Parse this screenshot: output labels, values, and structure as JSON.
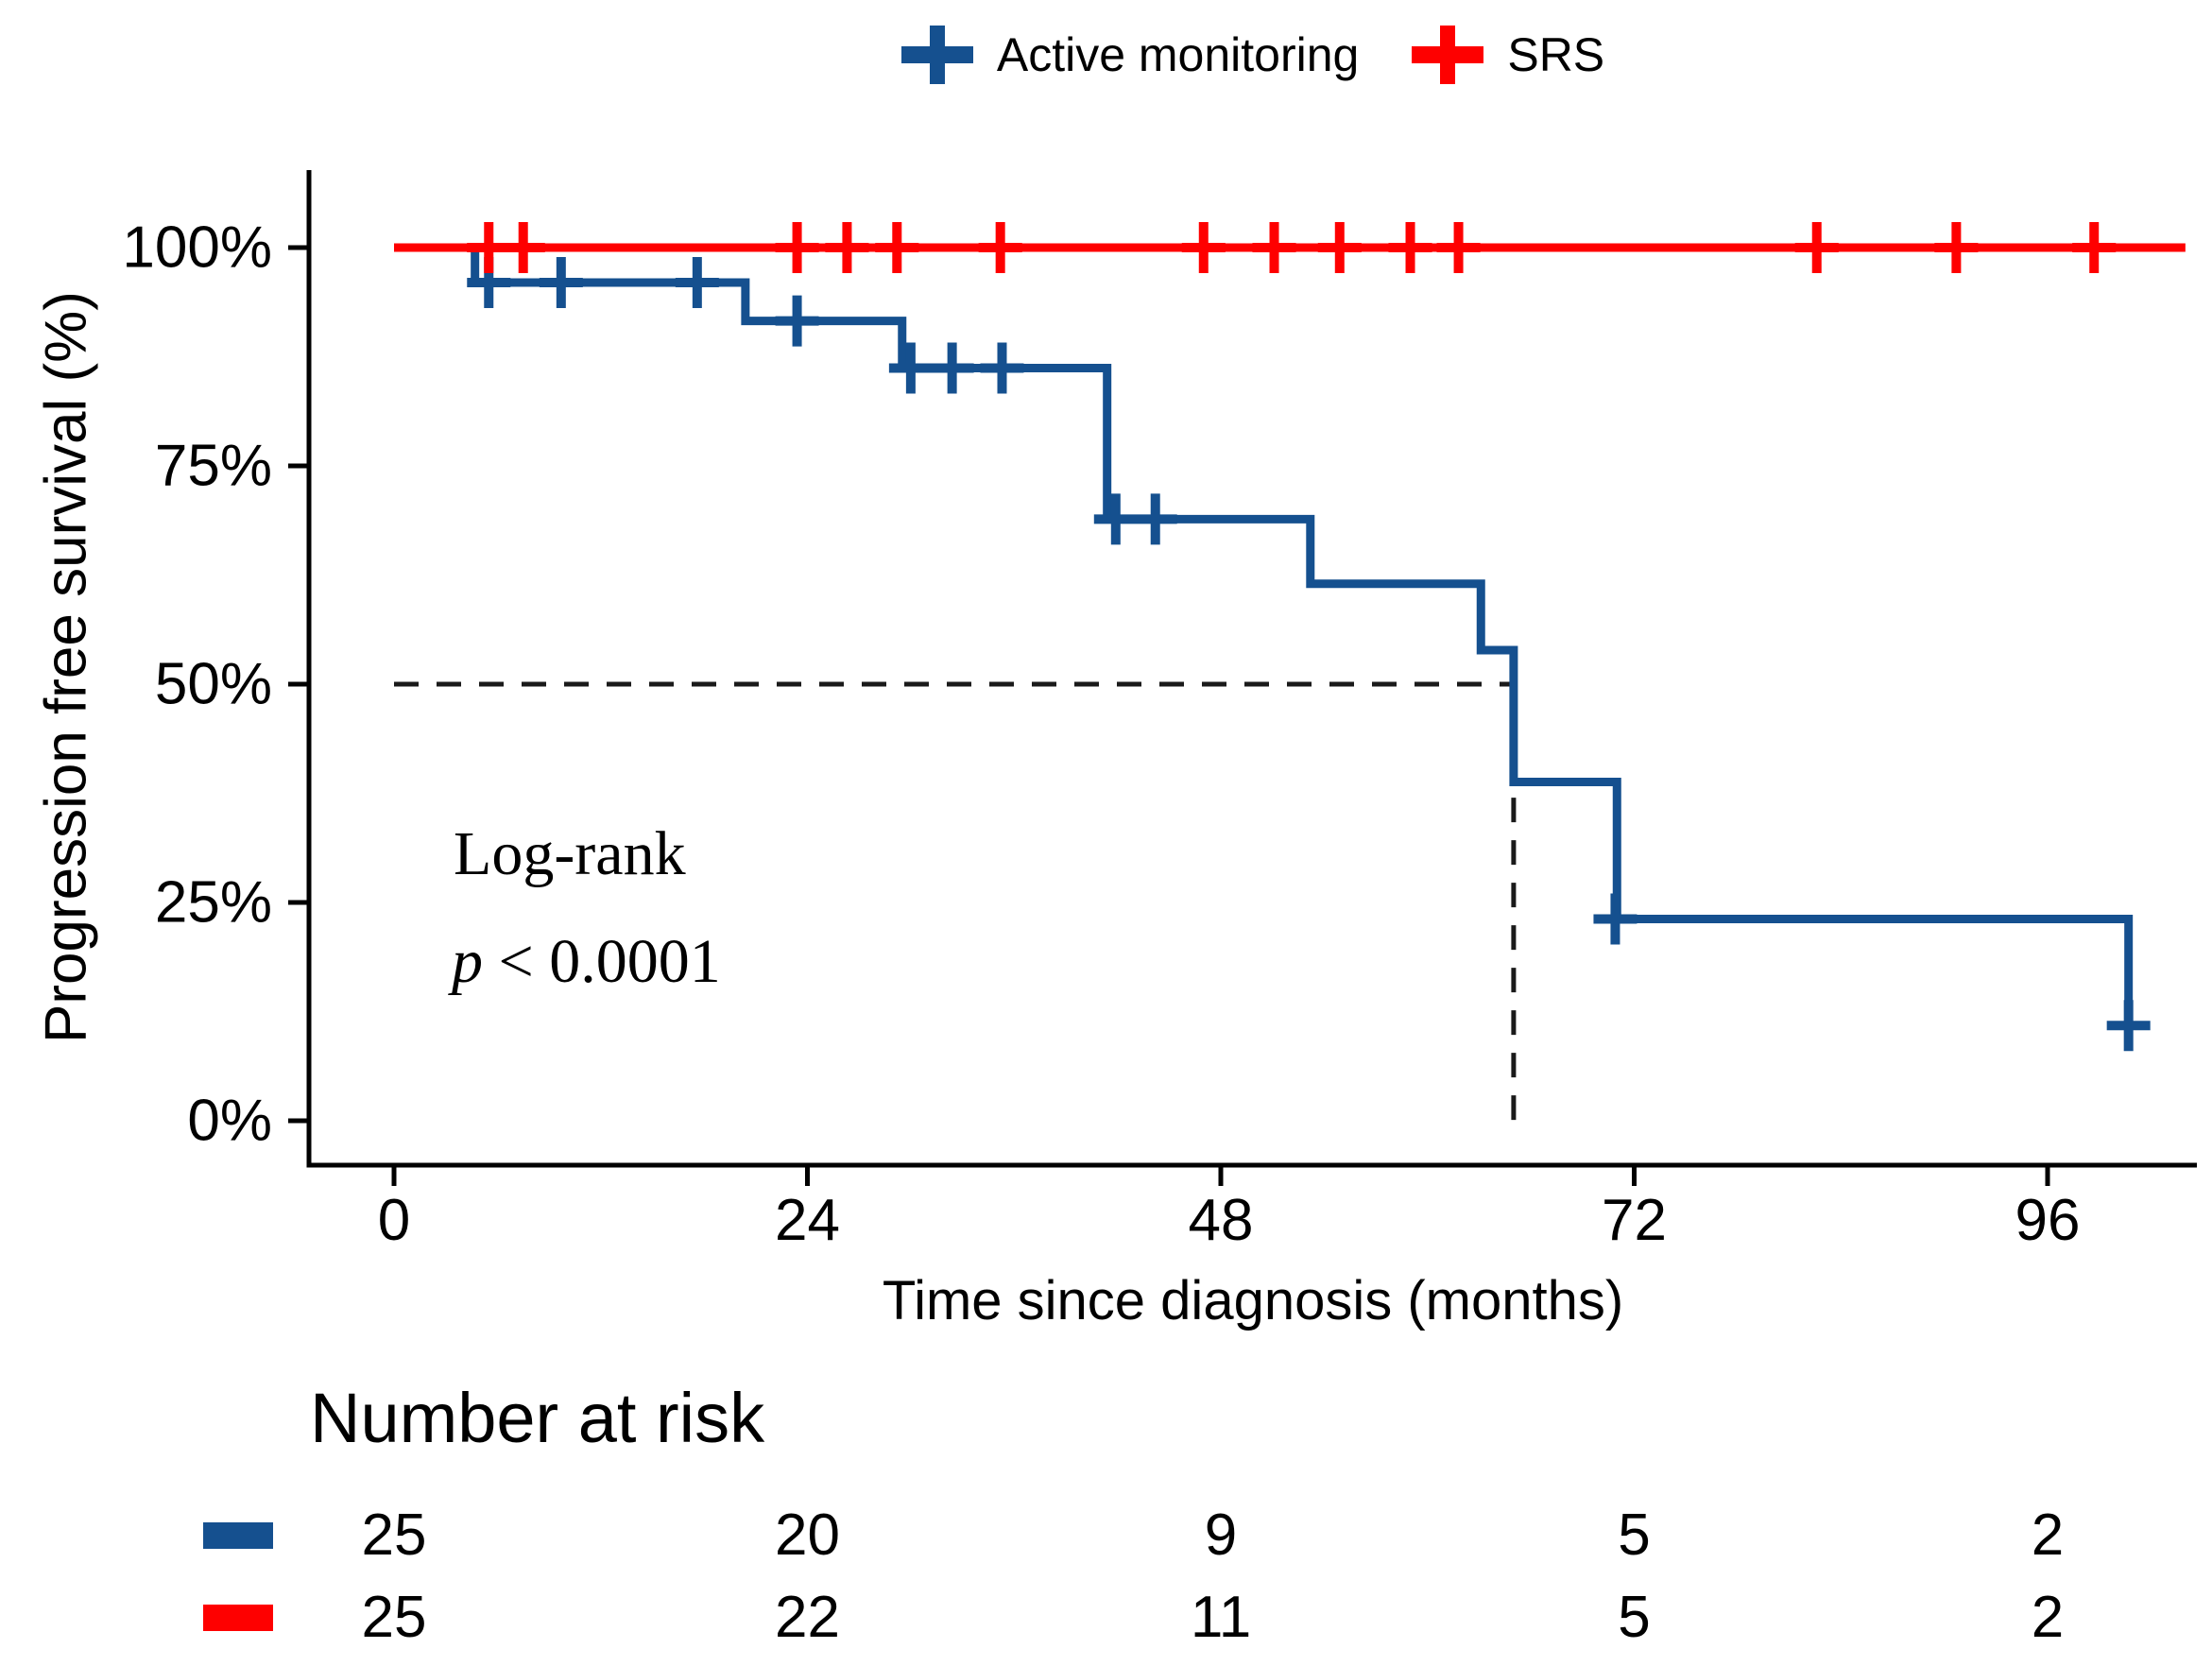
{
  "legend": {
    "items": [
      {
        "label": "Active monitoring",
        "color": "#15508F"
      },
      {
        "label": "SRS",
        "color": "#FE0000"
      }
    ]
  },
  "y_axis": {
    "title": "Progression free survival (%)",
    "tick_labels": [
      "100%",
      "75%",
      "50%",
      "25%",
      "0%"
    ]
  },
  "x_axis": {
    "title": "Time since diagnosis (months)",
    "tick_labels": [
      "0",
      "24",
      "48",
      "72",
      "96"
    ]
  },
  "annotation": {
    "line1": "Log-rank",
    "p_italic": "p",
    "p_rest": " < 0.0001"
  },
  "risk_table": {
    "title": "Number at risk",
    "times": [
      0,
      24,
      48,
      72,
      96
    ],
    "rows": [
      {
        "name": "Active monitoring",
        "color": "#15508F",
        "counts": [
          "25",
          "20",
          "9",
          "5",
          "2"
        ]
      },
      {
        "name": "SRS",
        "color": "#FE0000",
        "counts": [
          "25",
          "22",
          "11",
          "5",
          "2"
        ]
      }
    ]
  },
  "chart_data": {
    "type": "line",
    "subtype": "kaplan-meier",
    "title": "",
    "xlabel": "Time since diagnosis (months)",
    "ylabel": "Progression free survival (%)",
    "xlim": [
      0,
      105
    ],
    "ylim": [
      0,
      100
    ],
    "x_ticks": [
      0,
      24,
      48,
      72,
      96
    ],
    "y_ticks_percent": [
      100,
      75,
      50,
      25,
      0
    ],
    "grid": false,
    "legend_position": "top",
    "series": [
      {
        "name": "Active monitoring",
        "color": "#15508F",
        "steps": [
          [
            0,
            100
          ],
          [
            4.7,
            96
          ],
          [
            20.4,
            91.6
          ],
          [
            29.5,
            86.2
          ],
          [
            41.4,
            68.9
          ],
          [
            53.2,
            61.5
          ],
          [
            63.1,
            53.9
          ],
          [
            65,
            38.8
          ],
          [
            71,
            23.1
          ],
          [
            100.7,
            10.9
          ]
        ],
        "end_time": null,
        "censors": [
          [
            5.5,
            96
          ],
          [
            9.7,
            96
          ],
          [
            17.6,
            96
          ],
          [
            23.4,
            91.6
          ],
          [
            30,
            86.2
          ],
          [
            32.4,
            86.2
          ],
          [
            35.3,
            86.2
          ],
          [
            41.9,
            68.9
          ],
          [
            44.2,
            68.9
          ],
          [
            70.9,
            23.1
          ],
          [
            100.7,
            10.9
          ]
        ]
      },
      {
        "name": "SRS",
        "color": "#FE0000",
        "steps": [
          [
            0,
            100
          ]
        ],
        "end_time": 104,
        "censors": [
          [
            5.5,
            100
          ],
          [
            7.5,
            100
          ],
          [
            23.4,
            100
          ],
          [
            26.3,
            100
          ],
          [
            29.2,
            100
          ],
          [
            35.2,
            100
          ],
          [
            47,
            100
          ],
          [
            51.1,
            100
          ],
          [
            54.9,
            100
          ],
          [
            59,
            100
          ],
          [
            61.8,
            100
          ],
          [
            82.6,
            100
          ],
          [
            90.7,
            100
          ],
          [
            98.7,
            100
          ]
        ]
      }
    ],
    "median_line": {
      "y_percent": 50,
      "x_months": 65
    },
    "annotations": [
      "Log-rank",
      "p < 0.0001"
    ],
    "risk_table": {
      "title": "Number at risk",
      "times": [
        0,
        24,
        48,
        72,
        96
      ],
      "rows": [
        {
          "name": "Active monitoring",
          "counts": [
            25,
            20,
            9,
            5,
            2
          ]
        },
        {
          "name": "SRS",
          "counts": [
            25,
            22,
            11,
            5,
            2
          ]
        }
      ]
    }
  }
}
